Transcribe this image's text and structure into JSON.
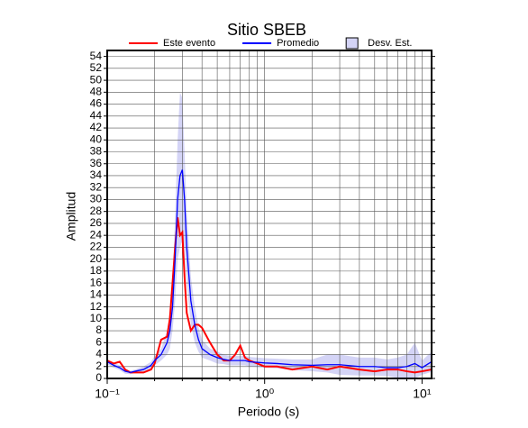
{
  "chart_data": {
    "type": "line",
    "title": "Sitio SBEB",
    "x_label": "Periodo (s)",
    "y_label": "Amplitud",
    "xscale": "log",
    "grid": true,
    "legend": "top",
    "xlim": [
      0.1,
      11.5
    ],
    "ylim": [
      0,
      55
    ],
    "xticks": [
      {
        "value": 0.1,
        "label": "10⁻¹"
      },
      {
        "value": 1,
        "label": "10⁰"
      },
      {
        "value": 10,
        "label": "10¹"
      }
    ],
    "xminorticks": [
      0.2,
      0.3,
      0.4,
      0.5,
      0.6,
      0.7,
      0.8,
      0.9,
      2,
      3,
      4,
      5,
      6,
      7,
      8,
      9
    ],
    "yticks": [
      0,
      2,
      4,
      6,
      8,
      10,
      12,
      14,
      16,
      18,
      20,
      22,
      24,
      26,
      28,
      30,
      32,
      34,
      36,
      38,
      40,
      42,
      44,
      46,
      48,
      50,
      52,
      54
    ],
    "x": [
      0.1,
      0.11,
      0.12,
      0.13,
      0.14,
      0.15,
      0.17,
      0.19,
      0.2,
      0.22,
      0.24,
      0.25,
      0.26,
      0.27,
      0.28,
      0.29,
      0.3,
      0.31,
      0.32,
      0.34,
      0.36,
      0.38,
      0.4,
      0.45,
      0.5,
      0.55,
      0.6,
      0.65,
      0.7,
      0.75,
      0.8,
      0.9,
      1,
      1.2,
      1.5,
      2,
      2.5,
      3,
      4,
      5,
      6,
      7,
      8,
      9,
      10,
      11.5
    ],
    "band": {
      "name": "Desv. Est.",
      "color": "#d4d4f6",
      "upper": [
        3.2,
        2.6,
        2.2,
        1.6,
        1.3,
        1.5,
        2,
        2.8,
        3.8,
        5,
        8,
        11,
        16,
        27,
        40,
        48,
        47,
        38,
        28,
        17,
        12,
        8.5,
        6.5,
        5,
        4.5,
        4,
        3.8,
        3.8,
        3.8,
        3.8,
        3.6,
        3.5,
        3.4,
        3.3,
        3.2,
        3.2,
        4,
        4,
        3.5,
        3.5,
        3.2,
        3.5,
        4,
        6,
        3,
        4.5
      ],
      "lower": [
        2.4,
        1.8,
        1.4,
        0.8,
        0.7,
        0.9,
        1,
        1.6,
        2.2,
        3,
        4,
        5,
        8,
        13,
        20,
        22,
        23,
        22,
        16,
        9,
        6,
        4.5,
        3.5,
        3,
        2.5,
        2.4,
        2.2,
        2.2,
        2.2,
        2.2,
        2,
        1.9,
        1.8,
        1.7,
        1.4,
        1.2,
        1,
        0.6,
        0.5,
        0.5,
        0.4,
        0.1,
        0,
        0,
        0.6,
        1.1
      ]
    },
    "series": [
      {
        "name": "Este evento",
        "color": "#ff0000",
        "values": [
          3,
          2.5,
          2.8,
          1.5,
          1,
          1,
          1,
          1.5,
          2.5,
          6.5,
          7,
          10,
          16,
          22,
          27,
          24,
          24.5,
          17,
          11,
          8,
          9,
          9,
          8.5,
          6,
          4,
          3,
          3,
          4,
          5.5,
          3.5,
          3,
          2.5,
          2,
          2,
          1.5,
          2,
          1.5,
          2,
          1.5,
          1.2,
          1.5,
          1.5,
          1.2,
          1,
          1.2,
          1.5
        ]
      },
      {
        "name": "Promedio",
        "color": "#0000ff",
        "values": [
          2.8,
          2.2,
          1.8,
          1.2,
          1,
          1.2,
          1.5,
          2.2,
          3,
          4,
          6,
          8,
          12,
          20,
          30,
          34,
          35,
          30,
          22,
          13,
          9,
          6.5,
          5,
          4,
          3.5,
          3.2,
          3,
          3,
          3,
          3,
          2.8,
          2.7,
          2.6,
          2.5,
          2.3,
          2.2,
          2.3,
          2.3,
          2,
          2,
          1.8,
          1.8,
          2,
          2.5,
          1.8,
          2.8
        ]
      }
    ]
  }
}
